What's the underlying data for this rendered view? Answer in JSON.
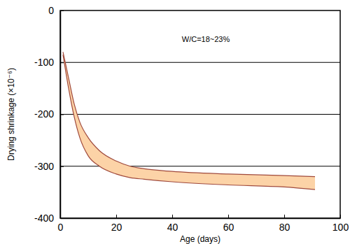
{
  "chart_data": {
    "type": "area",
    "x_label": "Age (days)",
    "y_label": "Drying shrinkage (×10⁻⁶)",
    "annotation": "W/C=18~23%",
    "x": [
      1,
      3,
      5,
      7,
      10,
      14,
      20,
      25,
      30,
      40,
      60,
      80,
      91
    ],
    "series": [
      {
        "color": "#a04a3c",
        "values": [
          -80,
          -130,
          -180,
          -215,
          -245,
          -270,
          -290,
          -300,
          -305,
          -310,
          -315,
          -318,
          -320
        ]
      },
      {
        "color": "#a04a3c",
        "values": [
          -85,
          -150,
          -205,
          -245,
          -280,
          -300,
          -315,
          -322,
          -325,
          -330,
          -336,
          -340,
          -345
        ]
      }
    ],
    "color": "#fcd3a7",
    "xlim": [
      0,
      100
    ],
    "xticks": [
      0,
      20,
      40,
      60,
      80,
      100
    ],
    "ylim": [
      -400,
      0
    ],
    "yticks": [
      -400,
      -300,
      -200,
      -100,
      0
    ],
    "grid": true
  }
}
